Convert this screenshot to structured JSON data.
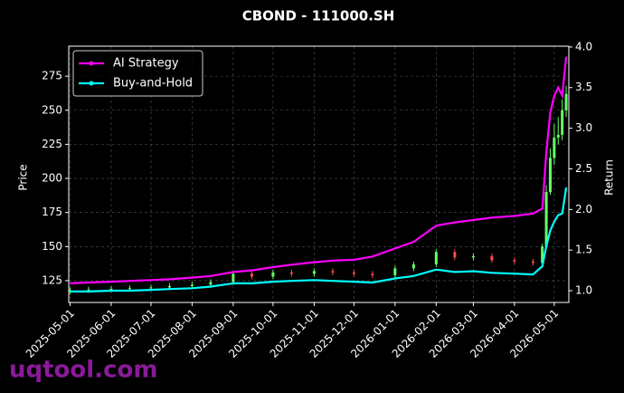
{
  "chart_data": {
    "type": "candlestick",
    "title": "CBOND - 111000.SH",
    "ylabel": "Price",
    "y2label": "Return",
    "x": [
      "2025-05-01",
      "2025-05-15",
      "2025-06-01",
      "2025-06-15",
      "2025-07-01",
      "2025-07-15",
      "2025-08-01",
      "2025-08-15",
      "2025-09-01",
      "2025-09-15",
      "2025-10-01",
      "2025-10-15",
      "2025-11-01",
      "2025-11-15",
      "2025-12-01",
      "2025-12-15",
      "2026-01-01",
      "2026-01-15",
      "2026-02-01",
      "2026-02-15",
      "2026-03-01",
      "2026-03-15",
      "2026-04-01",
      "2026-04-15",
      "2026-04-22",
      "2026-04-25",
      "2026-04-28",
      "2026-05-01",
      "2026-05-04",
      "2026-05-07",
      "2026-05-10"
    ],
    "candles": {
      "up_color": "#66ff66",
      "down_color": "#ff4d4d",
      "open": [
        117,
        118,
        118.5,
        119,
        119.5,
        120,
        121,
        122,
        124,
        130,
        128,
        131,
        130,
        132,
        131,
        130,
        129,
        134,
        137,
        146,
        142,
        143,
        140,
        139,
        138,
        150,
        190,
        215,
        230,
        232,
        250
      ],
      "high": [
        120,
        120.5,
        121,
        121.5,
        122,
        123,
        124,
        126,
        132,
        132,
        133,
        133,
        134,
        134,
        133,
        132,
        136,
        139,
        148,
        148,
        145,
        145,
        142,
        141,
        152,
        195,
        222,
        240,
        245,
        258,
        268
      ],
      "low": [
        115,
        116,
        116.5,
        117,
        117.5,
        118,
        119,
        120,
        122,
        126,
        126,
        128,
        128,
        129,
        128,
        127,
        127,
        132,
        135,
        140,
        140,
        138,
        137,
        136,
        136,
        148,
        188,
        210,
        225,
        228,
        245
      ],
      "close": [
        118,
        118.5,
        119,
        119.5,
        120,
        121,
        122,
        124,
        130,
        128,
        131,
        130,
        132,
        131,
        130,
        129,
        134,
        137,
        146,
        142,
        143,
        140,
        139,
        138,
        150,
        190,
        215,
        230,
        232,
        250,
        262
      ]
    },
    "series": [
      {
        "name": "AI Strategy",
        "color": "#ff00ff",
        "axis": "y2",
        "values": [
          1.09,
          1.1,
          1.11,
          1.12,
          1.13,
          1.14,
          1.16,
          1.18,
          1.23,
          1.25,
          1.29,
          1.32,
          1.35,
          1.37,
          1.38,
          1.42,
          1.52,
          1.6,
          1.8,
          1.84,
          1.87,
          1.9,
          1.92,
          1.95,
          2.01,
          2.7,
          3.2,
          3.4,
          3.5,
          3.4,
          3.88
        ]
      },
      {
        "name": "Buy-and-Hold",
        "color": "#00ffff",
        "axis": "y2",
        "values": [
          0.99,
          0.99,
          1.0,
          1.0,
          1.01,
          1.02,
          1.03,
          1.05,
          1.09,
          1.09,
          1.11,
          1.12,
          1.13,
          1.12,
          1.11,
          1.1,
          1.15,
          1.18,
          1.26,
          1.23,
          1.24,
          1.22,
          1.21,
          1.2,
          1.3,
          1.55,
          1.74,
          1.85,
          1.93,
          1.95,
          2.27
        ]
      }
    ],
    "xlim": [
      "2025-04-30",
      "2026-05-12"
    ],
    "xticks": [
      "2025-05-01",
      "2025-06-01",
      "2025-07-01",
      "2025-08-01",
      "2025-09-01",
      "2025-10-01",
      "2025-11-01",
      "2025-12-01",
      "2026-01-01",
      "2026-02-01",
      "2026-03-01",
      "2026-04-01",
      "2026-05-01"
    ],
    "ylim": [
      109,
      297
    ],
    "yticks": [
      125,
      150,
      175,
      200,
      225,
      250,
      275
    ],
    "y2lim": [
      0.855,
      4.01
    ],
    "y2ticks": [
      {
        "value": 1,
        "label": "1.0"
      },
      {
        "value": 1.5,
        "label": "1.5"
      },
      {
        "value": 2,
        "label": "2.0"
      },
      {
        "value": 2.5,
        "label": "2.5"
      },
      {
        "value": 3,
        "label": "3.0"
      },
      {
        "value": 3.5,
        "label": "3.5"
      },
      {
        "value": 4,
        "label": "4.0"
      }
    ],
    "grid": true,
    "legend": "upper left",
    "watermark": "uqtool.com"
  }
}
